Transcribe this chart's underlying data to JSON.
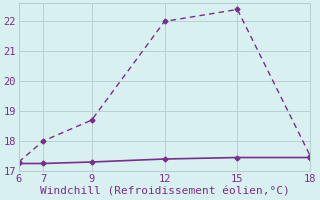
{
  "xlabel": "Windchill (Refroidissement éolien,°C)",
  "x_main": [
    6,
    7,
    9,
    12,
    15,
    18
  ],
  "y_main": [
    17.3,
    18.0,
    18.7,
    22.0,
    22.4,
    17.5
  ],
  "x_flat": [
    6,
    7,
    9,
    12,
    15,
    18
  ],
  "y_flat": [
    17.25,
    17.25,
    17.3,
    17.4,
    17.45,
    17.45
  ],
  "line_color": "#7B2D8B",
  "bg_color": "#d8f0f0",
  "grid_color": "#b8d0d0",
  "xlim": [
    6,
    18
  ],
  "ylim": [
    17,
    22.6
  ],
  "xticks": [
    6,
    7,
    9,
    12,
    15,
    18
  ],
  "yticks": [
    17,
    18,
    19,
    20,
    21,
    22
  ],
  "marker": "D",
  "markersize": 2.5,
  "linewidth_main": 1.0,
  "linewidth_flat": 1.2,
  "xlabel_fontsize": 8,
  "tick_fontsize": 7.5
}
